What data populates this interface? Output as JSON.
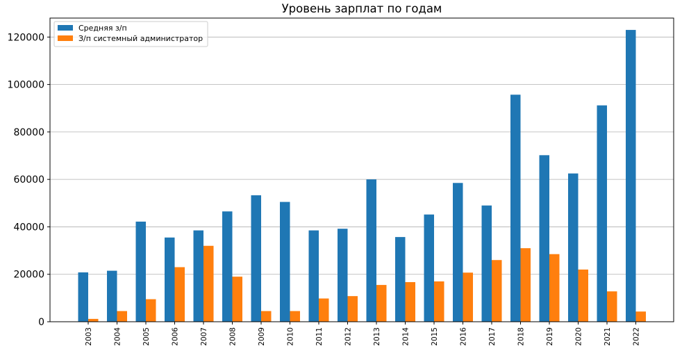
{
  "chart_data": {
    "type": "bar",
    "title": "Уровень зарплат по годам",
    "xlabel": "",
    "ylabel": "",
    "categories": [
      "2003",
      "2004",
      "2005",
      "2006",
      "2007",
      "2008",
      "2009",
      "2010",
      "2011",
      "2012",
      "2013",
      "2014",
      "2015",
      "2016",
      "2017",
      "2018",
      "2019",
      "2020",
      "2021",
      "2022"
    ],
    "series": [
      {
        "name": "Средняя з/п",
        "color": "#1f77b4",
        "values": [
          20800,
          21500,
          42200,
          35500,
          38500,
          46500,
          53300,
          50500,
          38500,
          39200,
          60000,
          35700,
          45200,
          58500,
          49000,
          95700,
          70200,
          62500,
          91200,
          123000
        ]
      },
      {
        "name": "З/п системный администратор",
        "color": "#ff7f0e",
        "values": [
          1200,
          4500,
          9500,
          23000,
          32000,
          19000,
          4500,
          4500,
          9800,
          10800,
          15500,
          16700,
          17000,
          20700,
          26000,
          31000,
          28500,
          22000,
          12800,
          4300
        ]
      }
    ],
    "ylim": [
      0,
      128000
    ],
    "yticks": [
      0,
      20000,
      40000,
      60000,
      80000,
      100000,
      120000
    ],
    "grid": "y",
    "legend": "top-left"
  }
}
